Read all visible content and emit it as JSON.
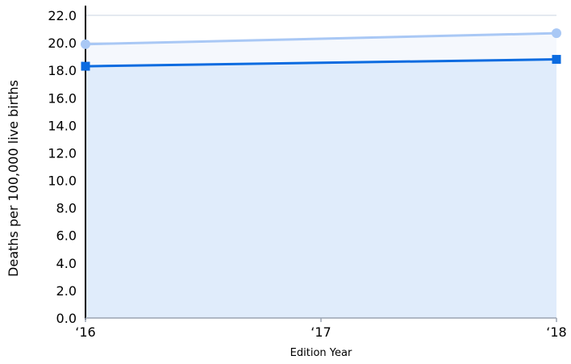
{
  "chart_data": {
    "type": "line",
    "title": "",
    "xlabel": "Edition Year",
    "ylabel": "Deaths per 100,000 live births",
    "categories": [
      "‘16",
      "‘17",
      "‘18"
    ],
    "x": [
      2016,
      2017,
      2018
    ],
    "ylim": [
      0,
      22
    ],
    "yticks": [
      "0.0",
      "2.0",
      "4.0",
      "6.0",
      "8.0",
      "10.0",
      "12.0",
      "14.0",
      "16.0",
      "18.0",
      "20.0",
      "22.0"
    ],
    "grid": true,
    "series": [
      {
        "x": [
          2016,
          2018
        ],
        "values": [
          19.9,
          20.7
        ],
        "color": "#a9c8f5",
        "marker": "circle"
      },
      {
        "x": [
          2016,
          2018
        ],
        "values": [
          18.3,
          18.8
        ],
        "color": "#0b6be0",
        "marker": "square"
      }
    ]
  }
}
